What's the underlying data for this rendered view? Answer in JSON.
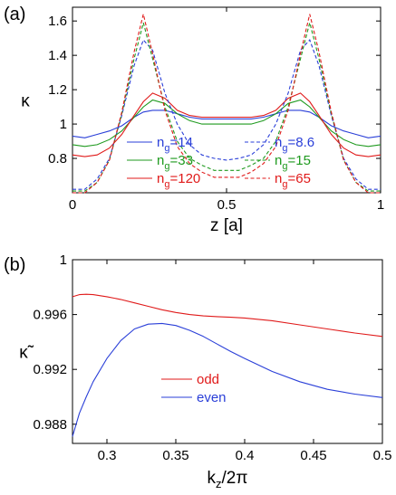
{
  "chart_data": [
    {
      "panel_label": "(a)",
      "type": "line",
      "xlabel": "z [a]",
      "ylabel": "κ",
      "xlim": [
        0,
        1
      ],
      "ylim": [
        0.6,
        1.68
      ],
      "xticks": [
        "0",
        "0.5",
        "1"
      ],
      "xtick_values": [
        0,
        0.5,
        1
      ],
      "yticks": [
        "0.8",
        "1",
        "1.2",
        "1.4",
        "1.6"
      ],
      "ytick_values": [
        0.8,
        1.0,
        1.2,
        1.4,
        1.6
      ],
      "grid": false,
      "x": [
        0,
        0.04,
        0.08,
        0.12,
        0.16,
        0.2,
        0.23,
        0.26,
        0.3,
        0.34,
        0.38,
        0.42,
        0.46,
        0.5,
        0.54,
        0.58,
        0.62,
        0.66,
        0.7,
        0.74,
        0.77,
        0.8,
        0.84,
        0.88,
        0.92,
        0.96,
        1
      ],
      "series": [
        {
          "name": "14",
          "color": "#2a3fd8",
          "dash": false,
          "values": [
            0.93,
            0.92,
            0.94,
            0.96,
            0.99,
            1.04,
            1.07,
            1.08,
            1.08,
            1.06,
            1.04,
            1.03,
            1.03,
            1.03,
            1.03,
            1.03,
            1.04,
            1.06,
            1.08,
            1.08,
            1.07,
            1.04,
            0.99,
            0.96,
            0.94,
            0.92,
            0.93
          ]
        },
        {
          "name": "33",
          "color": "#1f9a1f",
          "dash": false,
          "values": [
            0.88,
            0.87,
            0.88,
            0.91,
            0.96,
            1.04,
            1.1,
            1.14,
            1.12,
            1.06,
            1.02,
            1.0,
            1.0,
            1.0,
            1.0,
            1.0,
            1.02,
            1.06,
            1.12,
            1.14,
            1.1,
            1.04,
            0.96,
            0.91,
            0.88,
            0.87,
            0.88
          ]
        },
        {
          "name": "120",
          "color": "#e01a1a",
          "dash": false,
          "values": [
            0.82,
            0.81,
            0.82,
            0.86,
            0.94,
            1.05,
            1.13,
            1.18,
            1.15,
            1.08,
            1.05,
            1.04,
            1.04,
            1.04,
            1.04,
            1.04,
            1.05,
            1.08,
            1.15,
            1.18,
            1.13,
            1.05,
            0.94,
            0.86,
            0.82,
            0.81,
            0.82
          ]
        },
        {
          "name": "8.6",
          "color": "#2a3fd8",
          "dash": true,
          "values": [
            0.62,
            0.62,
            0.68,
            0.8,
            1.05,
            1.34,
            1.49,
            1.43,
            1.18,
            1.0,
            0.88,
            0.82,
            0.8,
            0.79,
            0.8,
            0.82,
            0.88,
            1.0,
            1.18,
            1.43,
            1.49,
            1.34,
            1.05,
            0.8,
            0.68,
            0.62,
            0.62
          ]
        },
        {
          "name": "15",
          "color": "#1f9a1f",
          "dash": true,
          "values": [
            0.61,
            0.61,
            0.66,
            0.79,
            1.06,
            1.38,
            1.59,
            1.38,
            1.1,
            0.9,
            0.8,
            0.76,
            0.73,
            0.73,
            0.73,
            0.76,
            0.8,
            0.9,
            1.1,
            1.38,
            1.59,
            1.38,
            1.06,
            0.79,
            0.66,
            0.61,
            0.61
          ]
        },
        {
          "name": "65",
          "color": "#e01a1a",
          "dash": true,
          "values": [
            0.6,
            0.6,
            0.66,
            0.79,
            1.07,
            1.42,
            1.64,
            1.41,
            1.08,
            0.87,
            0.77,
            0.72,
            0.69,
            0.69,
            0.69,
            0.72,
            0.77,
            0.87,
            1.08,
            1.41,
            1.64,
            1.42,
            1.07,
            0.79,
            0.66,
            0.6,
            0.6
          ]
        }
      ],
      "legend": {
        "prefix": "n",
        "subscript": "g",
        "placement": "center, two columns"
      }
    },
    {
      "panel_label": "(b)",
      "type": "line",
      "xlabel_base": "k",
      "xlabel_sub": "z",
      "xlabel_rest": "/2π",
      "ylabel": "κ̃",
      "xlim": [
        0.275,
        0.5
      ],
      "ylim": [
        0.9866,
        1.0
      ],
      "xticks": [
        "0.3",
        "0.35",
        "0.4",
        "0.45",
        "0.5"
      ],
      "xtick_values": [
        0.3,
        0.35,
        0.4,
        0.45,
        0.5
      ],
      "yticks": [
        "0.988",
        "0.992",
        "0.996",
        "1"
      ],
      "ytick_values": [
        0.988,
        0.992,
        0.996,
        1.0
      ],
      "grid": false,
      "series": [
        {
          "name": "odd",
          "color": "#e01a1a",
          "x": [
            0.275,
            0.28,
            0.285,
            0.29,
            0.3,
            0.31,
            0.32,
            0.33,
            0.34,
            0.35,
            0.36,
            0.37,
            0.38,
            0.39,
            0.4,
            0.42,
            0.44,
            0.46,
            0.48,
            0.5
          ],
          "values": [
            0.9973,
            0.99745,
            0.99748,
            0.99745,
            0.9973,
            0.9971,
            0.99685,
            0.9966,
            0.99635,
            0.99615,
            0.996,
            0.9959,
            0.99585,
            0.9958,
            0.99575,
            0.99555,
            0.99525,
            0.99495,
            0.99465,
            0.9944
          ]
        },
        {
          "name": "even",
          "color": "#2a3fd8",
          "x": [
            0.275,
            0.28,
            0.285,
            0.29,
            0.3,
            0.31,
            0.32,
            0.33,
            0.34,
            0.35,
            0.36,
            0.37,
            0.38,
            0.39,
            0.4,
            0.42,
            0.44,
            0.46,
            0.48,
            0.5
          ],
          "values": [
            0.9871,
            0.9888,
            0.99,
            0.9911,
            0.9928,
            0.9941,
            0.99495,
            0.9953,
            0.99535,
            0.9952,
            0.99485,
            0.9944,
            0.99385,
            0.9933,
            0.9928,
            0.99185,
            0.9911,
            0.99055,
            0.9902,
            0.98995
          ]
        }
      ],
      "legend": {
        "placement": "center-left"
      }
    }
  ]
}
